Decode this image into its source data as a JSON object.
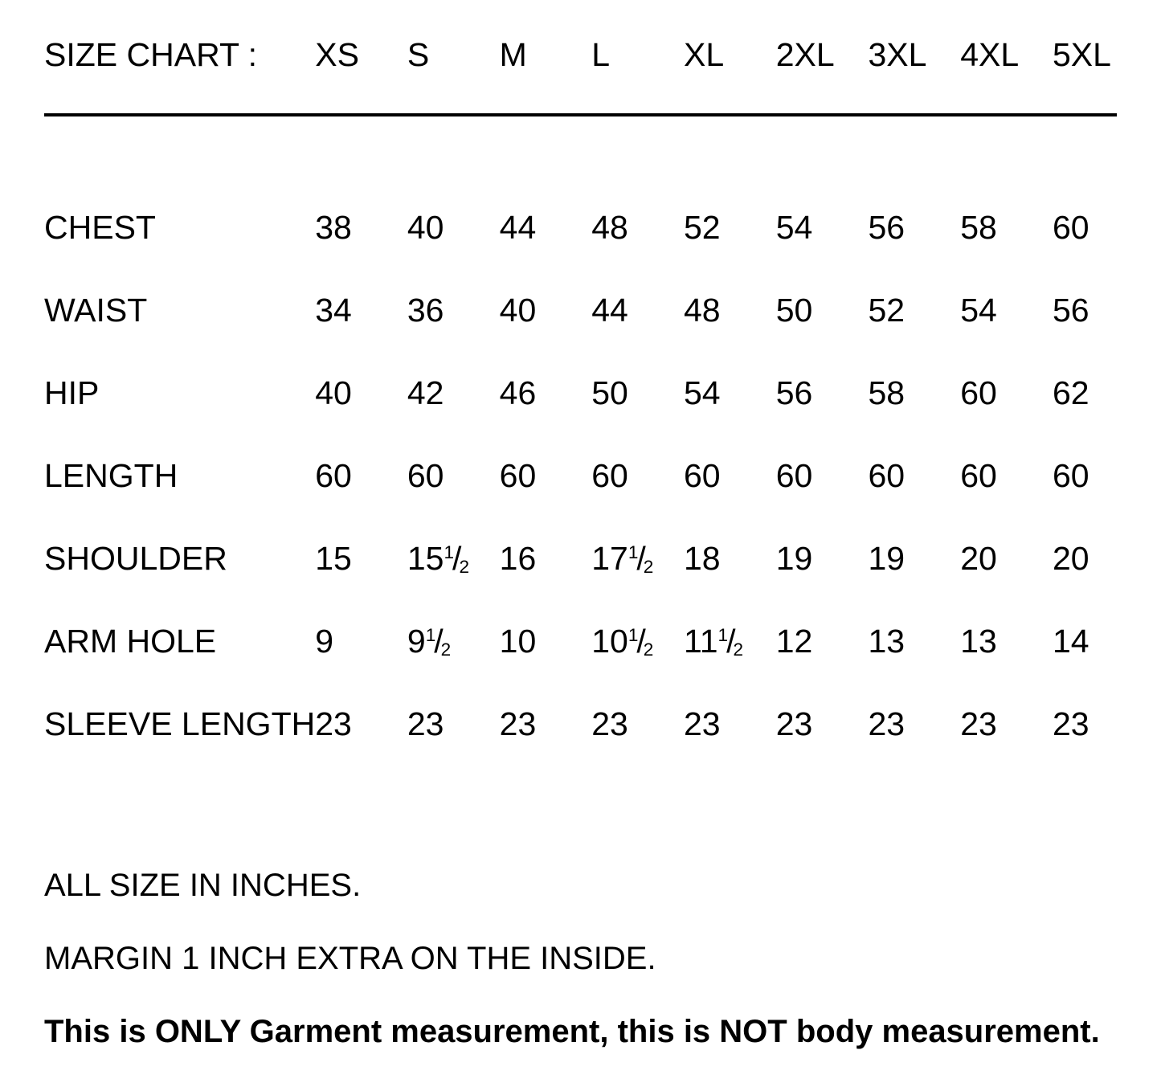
{
  "page": {
    "background_color": "#ffffff",
    "text_color": "#000000"
  },
  "table": {
    "title_label": "SIZE CHART :",
    "sizes": [
      "XS",
      "S",
      "M",
      "L",
      "XL",
      "2XL",
      "3XL",
      "4XL",
      "5XL"
    ],
    "rows": [
      {
        "label": "CHEST",
        "values": [
          "38",
          "40",
          "44",
          "48",
          "52",
          "54",
          "56",
          "58",
          "60"
        ]
      },
      {
        "label": "WAIST",
        "values": [
          "34",
          "36",
          "40",
          "44",
          "48",
          "50",
          "52",
          "54",
          "56"
        ]
      },
      {
        "label": "HIP",
        "values": [
          "40",
          "42",
          "46",
          "50",
          "54",
          "56",
          "58",
          "60",
          "62"
        ]
      },
      {
        "label": "LENGTH",
        "values": [
          "60",
          "60",
          "60",
          "60",
          "60",
          "60",
          "60",
          "60",
          "60"
        ]
      },
      {
        "label": "SHOULDER",
        "values": [
          "15",
          "15 1/2",
          "16",
          "17 1/2",
          "18",
          "19",
          "19",
          "20",
          "20"
        ]
      },
      {
        "label": "ARM HOLE",
        "values": [
          "9",
          "9 1/2",
          "10",
          "10 1/2",
          "11 1/2",
          "12",
          "13",
          "13",
          "14"
        ]
      },
      {
        "label": "SLEEVE LENGTH",
        "values": [
          "23",
          "23",
          "23",
          "23",
          "23",
          "23",
          "23",
          "23",
          "23"
        ]
      }
    ]
  },
  "notes": {
    "units": "ALL SIZE IN INCHES.",
    "margin": "MARGIN 1 INCH EXTRA ON THE INSIDE.",
    "disclaimer": "This is ONLY Garment measurement, this is NOT body measurement."
  }
}
